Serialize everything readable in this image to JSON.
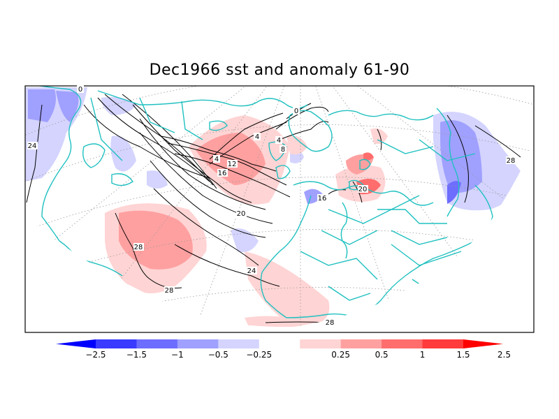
{
  "title": "Dec1966 sst and anomaly 61-90",
  "colors": {
    "coast": "#20c0c0",
    "contour": "#000000",
    "grid": "#9a9a9a",
    "anomaly_colorbar": [
      "#0000ff",
      "#3b3bff",
      "#6d6dff",
      "#a0a0ff",
      "#d4d4ff",
      "#ffffff",
      "#ffd4d4",
      "#ffa0a0",
      "#ff6d6d",
      "#ff3b3b",
      "#ff0000"
    ]
  },
  "colorbar": {
    "ticks": [
      "−2.5",
      "−1.5",
      "−1",
      "−0.5",
      "−0.25",
      "0.25",
      "0.5",
      "1",
      "1.5",
      "2.5"
    ]
  },
  "contour_labels": [
    "0",
    "0",
    "4",
    "4",
    "4",
    "8",
    "12",
    "16",
    "16",
    "20",
    "20",
    "24",
    "24",
    "28",
    "28",
    "28",
    "28"
  ]
}
